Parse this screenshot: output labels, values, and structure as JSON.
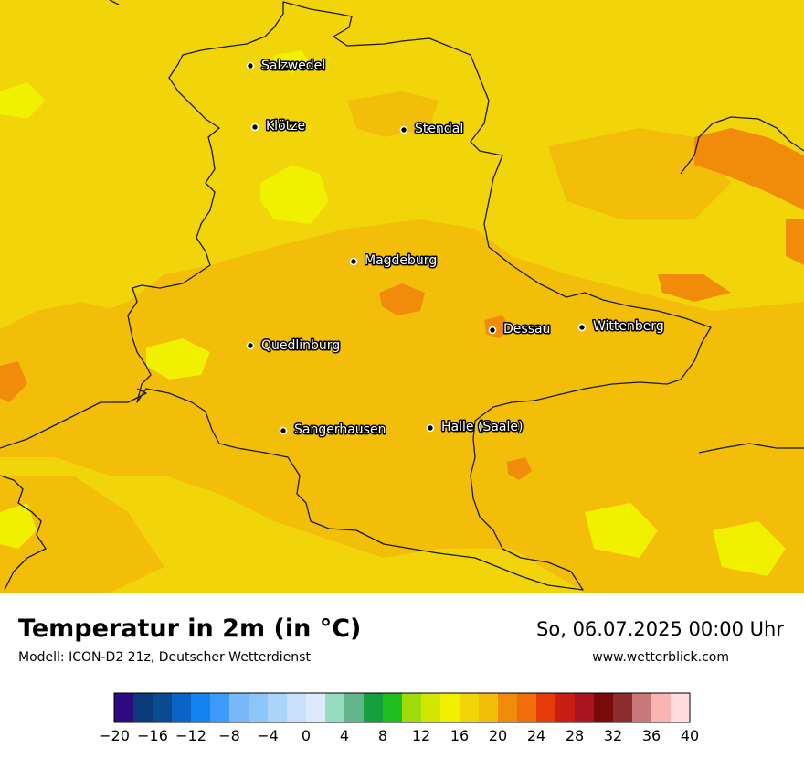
{
  "map": {
    "background_color": "#F2D40A",
    "cities": [
      {
        "name": "Salzwedel"
      },
      {
        "name": "Klötze"
      },
      {
        "name": "Stendal"
      },
      {
        "name": "Magdeburg"
      },
      {
        "name": "Dessau"
      },
      {
        "name": "Wittenberg"
      },
      {
        "name": "Quedlinburg"
      },
      {
        "name": "Sangerhausen"
      },
      {
        "name": "Halle (Saale)"
      }
    ]
  },
  "header": {
    "title": "Temperatur in 2m (in °C)",
    "subtitle": "Modell: ICON-D2 21z, Deutscher Wetterdienst",
    "datetime": "So, 06.07.2025 00:00 Uhr",
    "website": "www.wetterblick.com"
  },
  "legend": {
    "tick_labels": [
      "−20",
      "−16",
      "−12",
      "−8",
      "−4",
      "0",
      "4",
      "8",
      "12",
      "16",
      "20",
      "24",
      "28",
      "32",
      "36",
      "40"
    ],
    "colors": [
      "#2E0A82",
      "#0A3A7A",
      "#0A4A8E",
      "#0A64C8",
      "#1482F0",
      "#3C9AF8",
      "#78B8FA",
      "#8CC6FA",
      "#AAD4FC",
      "#C8E0FC",
      "#DCEAFC",
      "#96DCBE",
      "#64B48C",
      "#14A03C",
      "#1EBE1E",
      "#A0DC0A",
      "#D2E600",
      "#F0F000",
      "#F2D40A",
      "#F2BE0A",
      "#F08C0A",
      "#F06E0A",
      "#E63C0A",
      "#C81E14",
      "#AA141E",
      "#780A0A",
      "#8C2D2D",
      "#C87878",
      "#FAB4B4",
      "#FFDCDC"
    ]
  }
}
